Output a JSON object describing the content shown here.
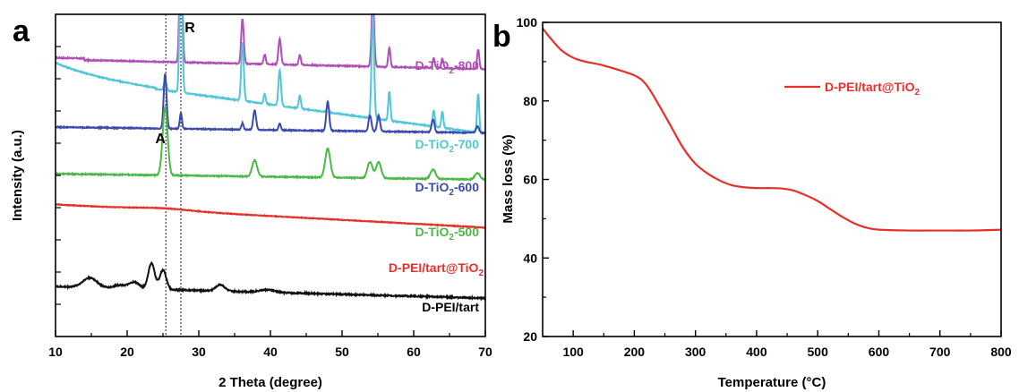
{
  "chart_data": [
    {
      "panel_label": "a",
      "type": "line",
      "xlabel": "2 Theta (degree)",
      "ylabel": "Intensity (a.u.)",
      "xlim": [
        10,
        70
      ],
      "xticks": [
        10,
        20,
        30,
        40,
        50,
        60,
        70
      ],
      "grid": false,
      "reference_lines": [
        {
          "label": "A",
          "x": 25.4
        },
        {
          "label": "R",
          "x": 27.5
        }
      ],
      "series": [
        {
          "name": "D-TiO",
          "sub": "2",
          "suffix": "-800",
          "color": "#b14fb8",
          "baseline": 0.86,
          "slope": 0.0005,
          "noise": 0.003,
          "peaks": [
            [
              27.5,
              0.5,
              0.18
            ],
            [
              36.1,
              0.14,
              0.18
            ],
            [
              39.2,
              0.03,
              0.15
            ],
            [
              41.3,
              0.08,
              0.18
            ],
            [
              44.1,
              0.03,
              0.15
            ],
            [
              54.3,
              0.22,
              0.18
            ],
            [
              56.6,
              0.06,
              0.15
            ],
            [
              62.8,
              0.03,
              0.15
            ],
            [
              64.0,
              0.03,
              0.15
            ],
            [
              69.0,
              0.06,
              0.15
            ]
          ]
        },
        {
          "name": "D-TiO",
          "sub": "2",
          "suffix": "-700",
          "color": "#4fc7d8",
          "baseline": 0.81,
          "slope": 0.003,
          "noise": 0.003,
          "peaks": [
            [
              25.3,
              0.03,
              0.18
            ],
            [
              27.5,
              0.47,
              0.18
            ],
            [
              36.1,
              0.18,
              0.18
            ],
            [
              39.2,
              0.03,
              0.15
            ],
            [
              41.3,
              0.11,
              0.18
            ],
            [
              44.1,
              0.04,
              0.15
            ],
            [
              48.0,
              0.02,
              0.15
            ],
            [
              54.3,
              0.32,
              0.18
            ],
            [
              56.6,
              0.09,
              0.15
            ],
            [
              62.8,
              0.05,
              0.15
            ],
            [
              64.0,
              0.05,
              0.15
            ],
            [
              69.0,
              0.12,
              0.15
            ]
          ]
        },
        {
          "name": "D-TiO",
          "sub": "2",
          "suffix": "-600",
          "color": "#3c4ab0",
          "baseline": 0.65,
          "slope": 0.0003,
          "noise": 0.003,
          "peaks": [
            [
              25.3,
              0.17,
              0.2
            ],
            [
              27.5,
              0.05,
              0.15
            ],
            [
              36.1,
              0.02,
              0.15
            ],
            [
              37.8,
              0.06,
              0.2
            ],
            [
              41.3,
              0.02,
              0.15
            ],
            [
              48.0,
              0.09,
              0.2
            ],
            [
              53.9,
              0.05,
              0.2
            ],
            [
              55.1,
              0.05,
              0.2
            ],
            [
              62.7,
              0.04,
              0.2
            ],
            [
              68.9,
              0.02,
              0.2
            ]
          ]
        },
        {
          "name": "D-TiO",
          "sub": "2",
          "suffix": "-500",
          "color": "#4cb848",
          "baseline": 0.505,
          "slope": 0.0003,
          "noise": 0.003,
          "peaks": [
            [
              25.3,
              0.21,
              0.35
            ],
            [
              37.8,
              0.05,
              0.35
            ],
            [
              48.0,
              0.09,
              0.35
            ],
            [
              53.9,
              0.05,
              0.35
            ],
            [
              55.1,
              0.05,
              0.35
            ],
            [
              62.7,
              0.03,
              0.35
            ],
            [
              68.9,
              0.02,
              0.35
            ]
          ]
        },
        {
          "name": "D-PEI/tart@TiO",
          "sub": "2",
          "suffix": "",
          "color": "#e8302a",
          "baseline": 0.41,
          "slope": 0.0012,
          "noise": 0.002,
          "peaks": [
            [
              25.0,
              0.006,
              4.0
            ]
          ]
        },
        {
          "name": "D-PEI/tart",
          "sub": "",
          "suffix": "",
          "color": "#111111",
          "baseline": 0.155,
          "slope": 0.0006,
          "noise": 0.004,
          "peaks": [
            [
              14.8,
              0.03,
              1.0
            ],
            [
              19.0,
              0.01,
              0.8
            ],
            [
              21.0,
              0.02,
              0.7
            ],
            [
              23.4,
              0.08,
              0.45
            ],
            [
              25.0,
              0.06,
              0.45
            ],
            [
              33.0,
              0.02,
              0.6
            ],
            [
              39.5,
              0.008,
              1.0
            ]
          ]
        }
      ]
    },
    {
      "panel_label": "b",
      "type": "line",
      "xlabel": "Temperature (",
      "xlabel_unit": "°C",
      "xlabel_end": ")",
      "ylabel": "Mass loss (%)",
      "xlim": [
        50,
        800
      ],
      "ylim": [
        20,
        100
      ],
      "xticks": [
        100,
        200,
        300,
        400,
        500,
        600,
        700,
        800
      ],
      "yticks": [
        20,
        40,
        60,
        80,
        100
      ],
      "grid": false,
      "legend_position": "top-right",
      "series": [
        {
          "name": "D-PEI/tart@TiO",
          "sub": "2",
          "color": "#e8302a",
          "x": [
            50,
            60,
            80,
            100,
            120,
            150,
            200,
            220,
            240,
            260,
            280,
            300,
            320,
            340,
            360,
            380,
            400,
            420,
            440,
            460,
            480,
            500,
            520,
            540,
            560,
            580,
            600,
            650,
            700,
            750,
            800
          ],
          "y": [
            98.5,
            96.5,
            93.0,
            91.0,
            90.0,
            89.0,
            86.5,
            84.0,
            79.0,
            73.5,
            68.0,
            64.0,
            61.5,
            59.7,
            58.5,
            58.0,
            57.8,
            57.8,
            57.7,
            57.2,
            56.0,
            54.5,
            52.5,
            50.5,
            48.8,
            47.7,
            47.2,
            47.0,
            47.0,
            47.0,
            47.2
          ]
        }
      ]
    }
  ]
}
